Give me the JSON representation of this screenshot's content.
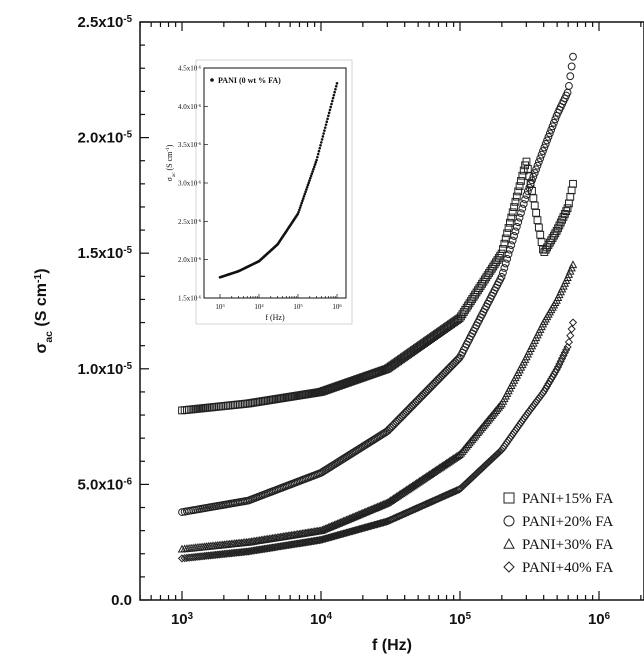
{
  "chart_data": [
    {
      "type": "scatter",
      "title": "",
      "xlabel": "f (Hz)",
      "ylabel_main": "σ",
      "ylabel_sub": "ac",
      "ylabel_unit": "(S cm",
      "ylabel_exp": "-1",
      "ylabel_close": ")",
      "xscale": "log",
      "xlim": [
        1000,
        1000000
      ],
      "ylim": [
        0,
        2.5e-05
      ],
      "x_ticks": [
        {
          "base": "10",
          "exp": "3"
        },
        {
          "base": "10",
          "exp": "4"
        },
        {
          "base": "10",
          "exp": "5"
        },
        {
          "base": "10",
          "exp": "6"
        }
      ],
      "y_ticks": [
        {
          "text": "0.0",
          "exp": ""
        },
        {
          "text": "5.0x10",
          "exp": "-6"
        },
        {
          "text": "1.0x10",
          "exp": "-5"
        },
        {
          "text": "1.5x10",
          "exp": "-5"
        },
        {
          "text": "2.0x10",
          "exp": "-5"
        },
        {
          "text": "2.5x10",
          "exp": "-5"
        }
      ],
      "legend_position": "bottom-right",
      "series": [
        {
          "name": "PANI+15% FA",
          "marker": "square",
          "x": [
            1000,
            3000,
            10000,
            30000,
            100000,
            200000,
            300000,
            400000,
            500000,
            600000,
            650000
          ],
          "y": [
            8.2e-06,
            8.5e-06,
            9e-06,
            1e-05,
            1.22e-05,
            1.5e-05,
            1.9e-05,
            1.5e-05,
            1.6e-05,
            1.7e-05,
            1.8e-05
          ]
        },
        {
          "name": "PANI+20% FA",
          "marker": "circle",
          "x": [
            1000,
            3000,
            10000,
            30000,
            100000,
            200000,
            300000,
            400000,
            500000,
            600000,
            650000
          ],
          "y": [
            3.8e-06,
            4.3e-06,
            5.5e-06,
            7.3e-06,
            1.05e-05,
            1.4e-05,
            1.75e-05,
            1.95e-05,
            2.1e-05,
            2.2e-05,
            2.35e-05
          ]
        },
        {
          "name": "PANI+30% FA",
          "marker": "triangle",
          "x": [
            1000,
            3000,
            10000,
            30000,
            100000,
            200000,
            300000,
            400000,
            500000,
            600000,
            650000
          ],
          "y": [
            2.2e-06,
            2.5e-06,
            3e-06,
            4.2e-06,
            6.3e-06,
            8.5e-06,
            1.05e-05,
            1.2e-05,
            1.3e-05,
            1.4e-05,
            1.45e-05
          ]
        },
        {
          "name": "PANI+40% FA",
          "marker": "diamond",
          "x": [
            1000,
            3000,
            10000,
            30000,
            100000,
            200000,
            300000,
            400000,
            500000,
            600000,
            650000
          ],
          "y": [
            1.8e-06,
            2.1e-06,
            2.6e-06,
            3.4e-06,
            4.8e-06,
            6.5e-06,
            8e-06,
            9e-06,
            1e-05,
            1.1e-05,
            1.2e-05
          ]
        }
      ]
    },
    {
      "type": "scatter",
      "title": "",
      "xlabel": "f (Hz)",
      "ylabel_main": "σ",
      "ylabel_sub": "ac",
      "ylabel_unit": "(S cm",
      "ylabel_exp": "-1",
      "ylabel_close": ")",
      "xscale": "log",
      "xlim": [
        1000,
        1000000
      ],
      "ylim": [
        1.5e-06,
        4.5e-06
      ],
      "x_ticks": [
        {
          "base": "10",
          "exp": "3"
        },
        {
          "base": "10",
          "exp": "4"
        },
        {
          "base": "10",
          "exp": "5"
        },
        {
          "base": "10",
          "exp": "6"
        }
      ],
      "y_ticks": [
        {
          "text": "1.5x10",
          "exp": "-6"
        },
        {
          "text": "2.0x10",
          "exp": "-6"
        },
        {
          "text": "2.5x10",
          "exp": "-6"
        },
        {
          "text": "3.0x10",
          "exp": "-6"
        },
        {
          "text": "3.5x10",
          "exp": "-6"
        },
        {
          "text": "4.0x10",
          "exp": "-6"
        },
        {
          "text": "4.5x10",
          "exp": "-6"
        }
      ],
      "series": [
        {
          "name": "PANI (0 wt % FA)",
          "marker": "dot",
          "x": [
            1000,
            3000,
            10000,
            30000,
            100000,
            300000,
            1000000
          ],
          "y": [
            1.77e-06,
            1.85e-06,
            1.98e-06,
            2.2e-06,
            2.6e-06,
            3.3e-06,
            4.3e-06
          ]
        }
      ]
    }
  ]
}
